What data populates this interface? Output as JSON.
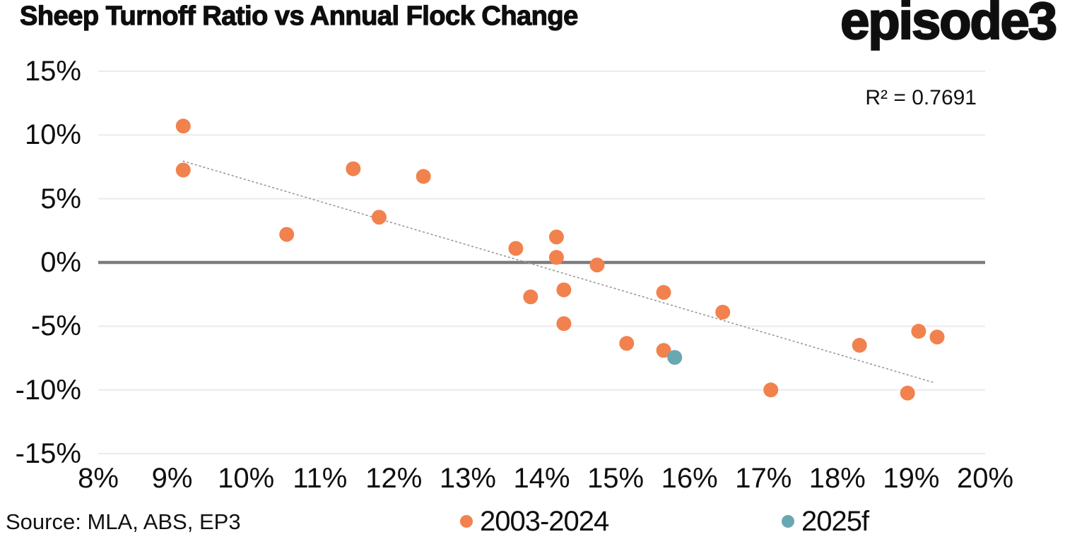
{
  "header": {
    "title": "Sheep Turnoff Ratio vs Annual Flock Change",
    "logo": "episode3"
  },
  "annotation": {
    "r_squared_label": "R² = 0.7691"
  },
  "footer": {
    "source": "Source: MLA, ABS, EP3"
  },
  "legend": {
    "items": [
      {
        "label": "2003-2024",
        "color": "#F1824E"
      },
      {
        "label": "2025f",
        "color": "#69A8B1"
      }
    ]
  },
  "colors": {
    "orange": "#F1824E",
    "teal": "#69A8B1",
    "zero_line": "#7C7C7C",
    "gridline": "#EBEBEB",
    "trendline": "#9C9C9C",
    "text": "#0E0E0E"
  },
  "chart_data": {
    "type": "scatter",
    "title": "Sheep Turnoff Ratio vs Annual Flock Change",
    "xlabel": "",
    "ylabel": "",
    "xlim": [
      8,
      20
    ],
    "ylim": [
      -15,
      15
    ],
    "grid": "horizontal",
    "legend_position": "bottom-center",
    "x_tick_values": [
      8,
      9,
      10,
      11,
      12,
      13,
      14,
      15,
      16,
      17,
      18,
      19,
      20
    ],
    "x_ticks": [
      "8%",
      "9%",
      "10%",
      "11%",
      "12%",
      "13%",
      "14%",
      "15%",
      "16%",
      "17%",
      "18%",
      "19%",
      "20%"
    ],
    "y_tick_values": [
      15,
      10,
      5,
      0,
      -5,
      -10,
      -15
    ],
    "y_ticks": [
      "15%",
      "10%",
      "5%",
      "0%",
      "-5%",
      "-10%",
      "-15%"
    ],
    "series": [
      {
        "name": "2003-2024",
        "color": "#F1824E",
        "points": [
          [
            9.15,
            10.7
          ],
          [
            9.15,
            7.25
          ],
          [
            10.55,
            2.2
          ],
          [
            11.45,
            7.35
          ],
          [
            11.8,
            3.55
          ],
          [
            12.4,
            6.75
          ],
          [
            13.65,
            1.1
          ],
          [
            13.85,
            -2.7
          ],
          [
            14.2,
            2.0
          ],
          [
            14.2,
            0.4
          ],
          [
            14.3,
            -2.15
          ],
          [
            14.3,
            -4.8
          ],
          [
            14.75,
            -0.2
          ],
          [
            15.15,
            -6.35
          ],
          [
            15.65,
            -2.35
          ],
          [
            15.65,
            -6.9
          ],
          [
            16.45,
            -3.9
          ],
          [
            17.1,
            -10.0
          ],
          [
            18.3,
            -6.5
          ],
          [
            18.95,
            -10.25
          ],
          [
            19.1,
            -5.4
          ],
          [
            19.35,
            -5.85
          ]
        ]
      },
      {
        "name": "2025f",
        "color": "#69A8B1",
        "points": [
          [
            15.8,
            -7.45
          ]
        ]
      }
    ],
    "trendline": {
      "style": "dotted",
      "color": "#9C9C9C",
      "x1": 9.15,
      "y1": 7.95,
      "x2": 19.32,
      "y2": -9.45,
      "r_squared": 0.7691
    }
  }
}
